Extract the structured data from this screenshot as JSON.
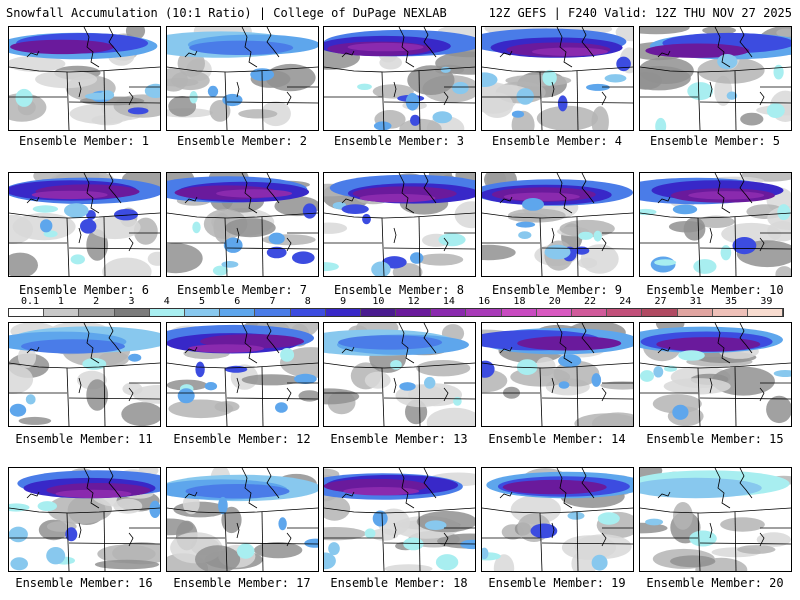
{
  "header": {
    "left_title": "Snowfall Accumulation (10:1 Ratio) | College of DuPage NEXLAB",
    "right_title": "12Z GEFS | F240 Valid: 12Z THU NOV 27 2025"
  },
  "colorbar": {
    "labels": [
      "0.1",
      "1",
      "2",
      "3",
      "4",
      "5",
      "6",
      "7",
      "8",
      "9",
      "10",
      "12",
      "14",
      "16",
      "18",
      "20",
      "22",
      "24",
      "27",
      "31",
      "35",
      "39"
    ],
    "colors": [
      "#ffffff",
      "#c8c8c8",
      "#a0a0a0",
      "#7c7c7c",
      "#a8eef0",
      "#88c8ee",
      "#5ea6ec",
      "#4a7ce8",
      "#3c4ce0",
      "#3828c8",
      "#4a1c90",
      "#6a1a9c",
      "#8a2aae",
      "#a83ab8",
      "#c84ac0",
      "#d858c0",
      "#d05a9a",
      "#c2507a",
      "#b04a62",
      "#e0a4a0",
      "#eec0b8",
      "#f8dcd0"
    ]
  },
  "panels": [
    {
      "label": "Ensemble Member: 1",
      "intensity": 2
    },
    {
      "label": "Ensemble Member: 2",
      "intensity": 1
    },
    {
      "label": "Ensemble Member: 3",
      "intensity": 3
    },
    {
      "label": "Ensemble Member: 4",
      "intensity": 3
    },
    {
      "label": "Ensemble Member: 5",
      "intensity": 2
    },
    {
      "label": "Ensemble Member: 6",
      "intensity": 3
    },
    {
      "label": "Ensemble Member: 7",
      "intensity": 3
    },
    {
      "label": "Ensemble Member: 8",
      "intensity": 3
    },
    {
      "label": "Ensemble Member: 9",
      "intensity": 3
    },
    {
      "label": "Ensemble Member: 10",
      "intensity": 3
    },
    {
      "label": "Ensemble Member: 11",
      "intensity": 1
    },
    {
      "label": "Ensemble Member: 12",
      "intensity": 3
    },
    {
      "label": "Ensemble Member: 13",
      "intensity": 1
    },
    {
      "label": "Ensemble Member: 14",
      "intensity": 2
    },
    {
      "label": "Ensemble Member: 15",
      "intensity": 2
    },
    {
      "label": "Ensemble Member: 16",
      "intensity": 3
    },
    {
      "label": "Ensemble Member: 17",
      "intensity": 1
    },
    {
      "label": "Ensemble Member: 18",
      "intensity": 3
    },
    {
      "label": "Ensemble Member: 19",
      "intensity": 2
    },
    {
      "label": "Ensemble Member: 20",
      "intensity": 0
    }
  ]
}
